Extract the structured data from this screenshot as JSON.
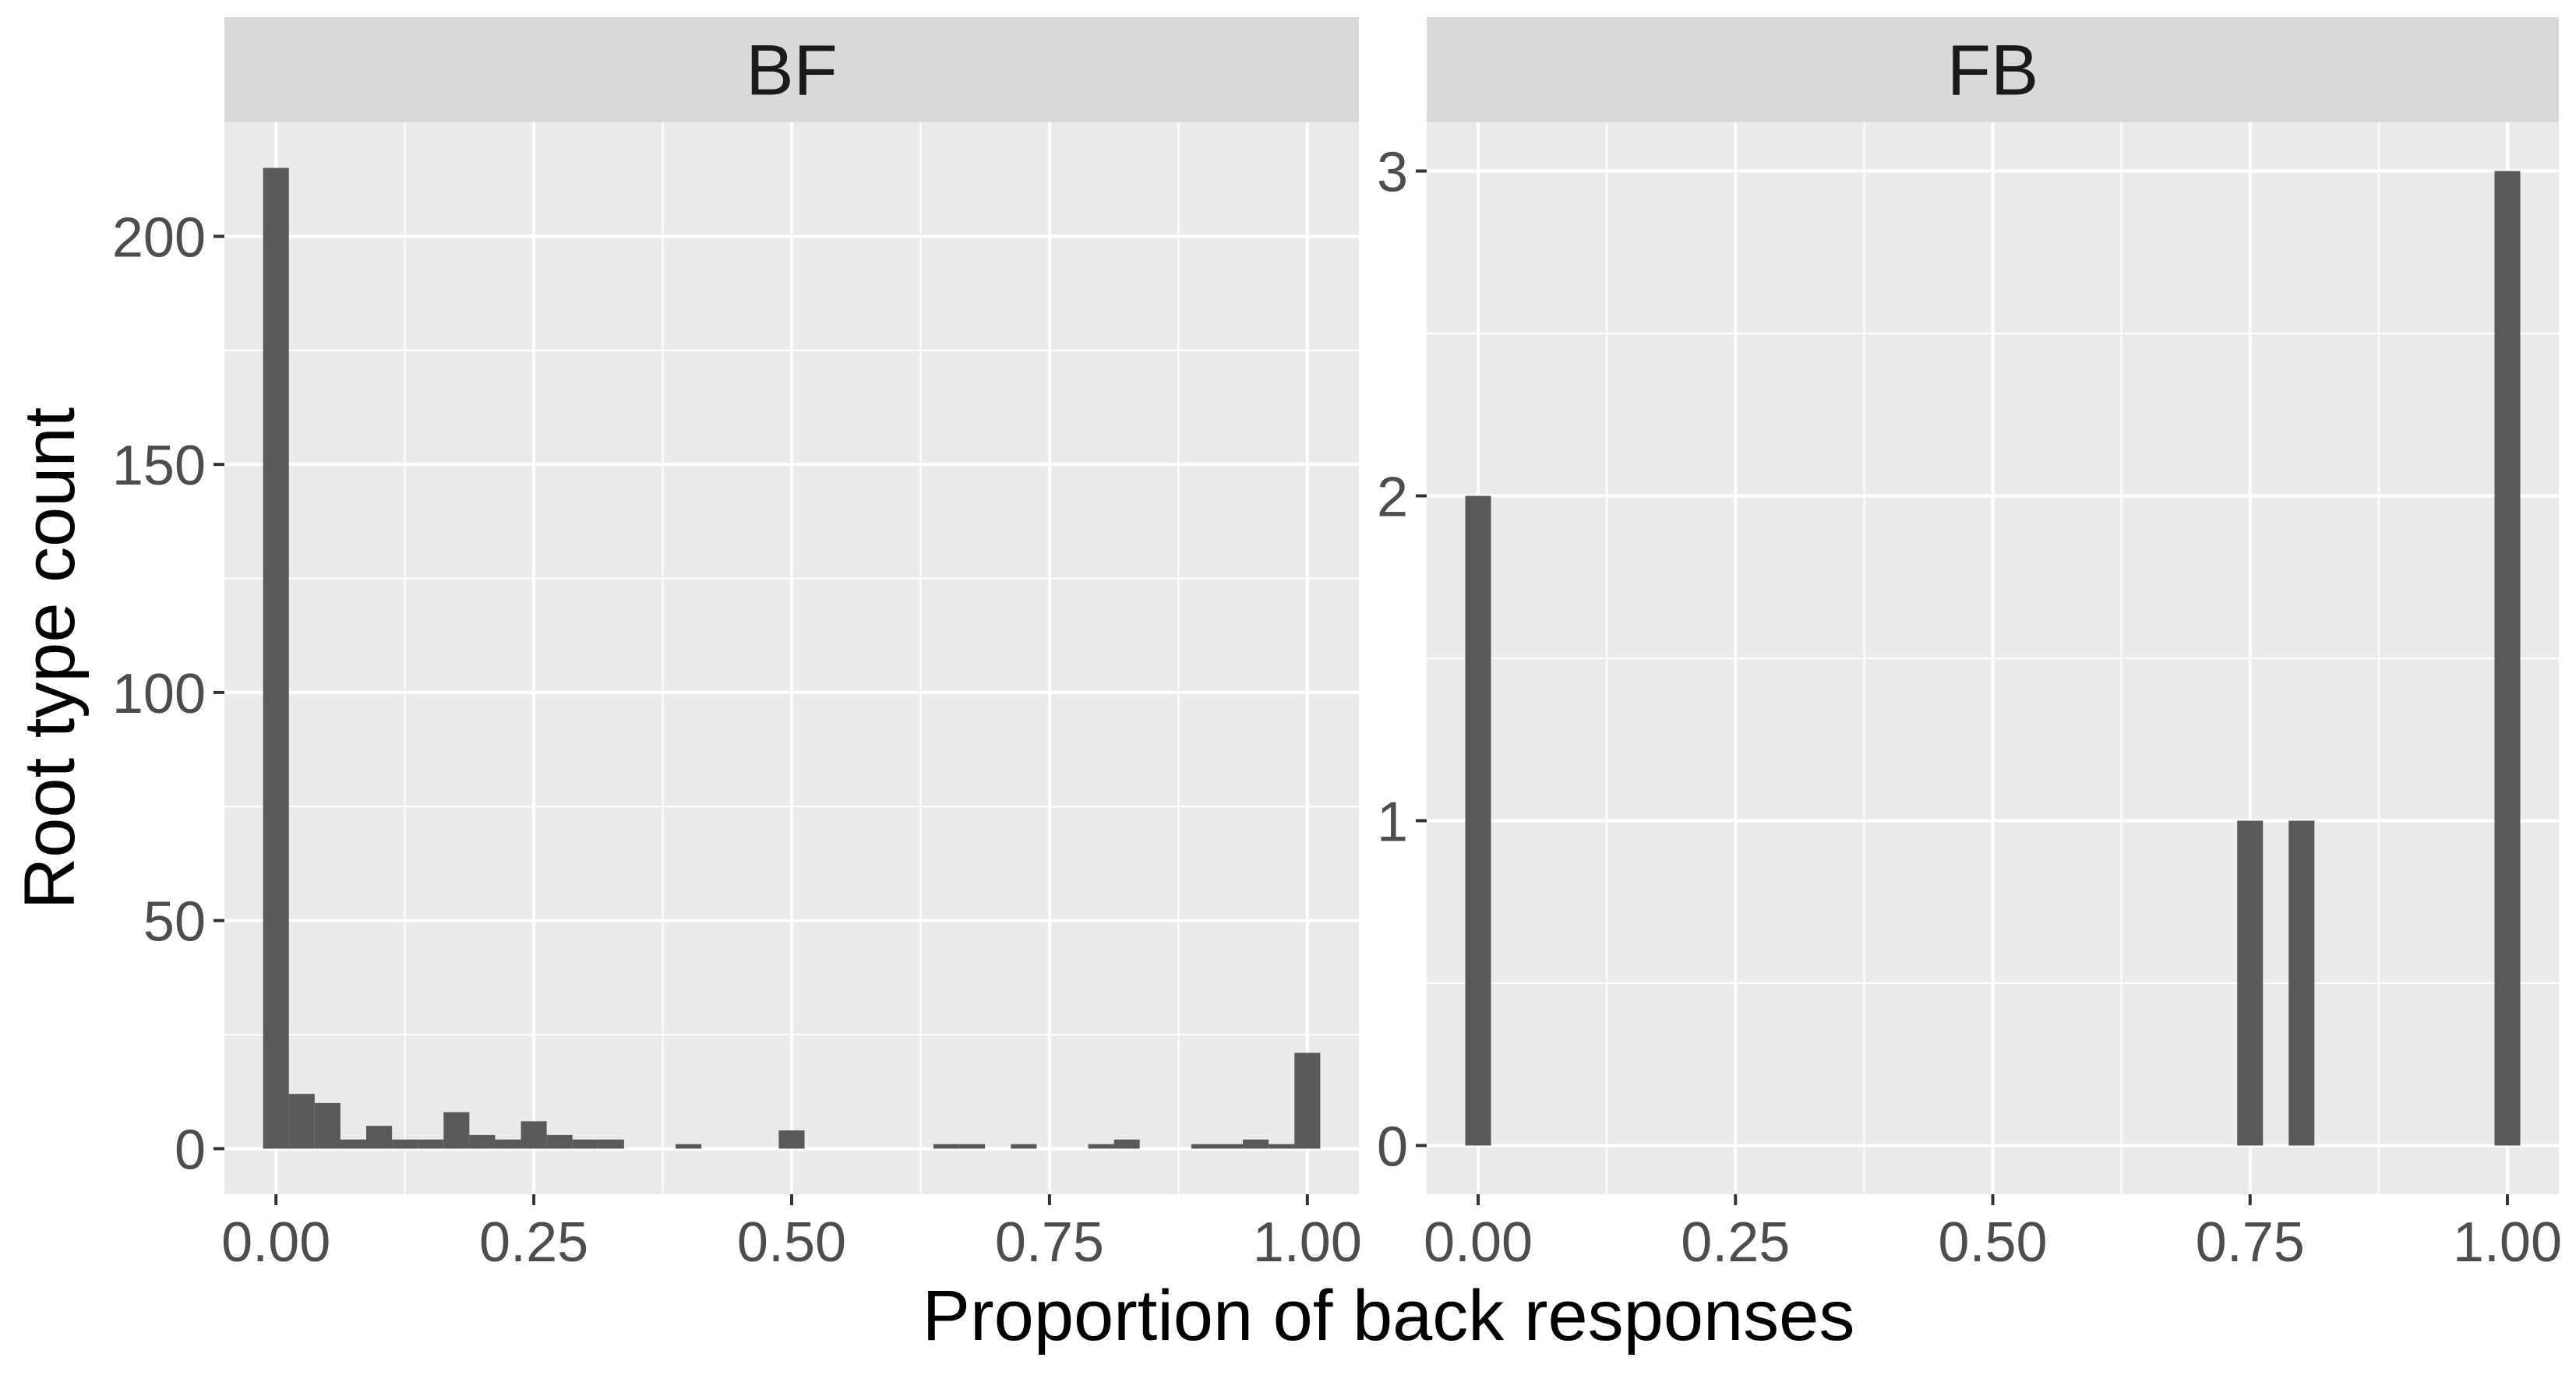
{
  "chart_data": {
    "type": "bar",
    "xlabel": "Proportion of back responses",
    "ylabel": "Root type count",
    "colors": {
      "panel_bg": "#EBEBEB",
      "strip_bg": "#D9D9D9",
      "grid": "#FFFFFF",
      "bar": "#595959",
      "tick_label": "#4D4D4D"
    },
    "panels": [
      {
        "label": "BF",
        "xlim": [
          -0.05,
          1.05
        ],
        "ylim": [
          -10,
          225
        ],
        "x_ticks": [
          0,
          0.25,
          0.5,
          0.75,
          1
        ],
        "x_tick_labels": [
          "0.00",
          "0.25",
          "0.50",
          "0.75",
          "1.00"
        ],
        "y_ticks": [
          0,
          50,
          100,
          150,
          200
        ],
        "y_tick_labels": [
          "0",
          "50",
          "100",
          "150",
          "200"
        ],
        "bin_width": 0.025,
        "bins": [
          {
            "x": 0.0,
            "count": 215
          },
          {
            "x": 0.025,
            "count": 12
          },
          {
            "x": 0.05,
            "count": 10
          },
          {
            "x": 0.075,
            "count": 2
          },
          {
            "x": 0.1,
            "count": 5
          },
          {
            "x": 0.125,
            "count": 2
          },
          {
            "x": 0.15,
            "count": 2
          },
          {
            "x": 0.175,
            "count": 8
          },
          {
            "x": 0.2,
            "count": 3
          },
          {
            "x": 0.225,
            "count": 2
          },
          {
            "x": 0.25,
            "count": 6
          },
          {
            "x": 0.275,
            "count": 3
          },
          {
            "x": 0.3,
            "count": 2
          },
          {
            "x": 0.325,
            "count": 2
          },
          {
            "x": 0.4,
            "count": 1
          },
          {
            "x": 0.5,
            "count": 4
          },
          {
            "x": 0.65,
            "count": 1
          },
          {
            "x": 0.675,
            "count": 1
          },
          {
            "x": 0.725,
            "count": 1
          },
          {
            "x": 0.8,
            "count": 1
          },
          {
            "x": 0.825,
            "count": 2
          },
          {
            "x": 0.9,
            "count": 1
          },
          {
            "x": 0.925,
            "count": 1
          },
          {
            "x": 0.95,
            "count": 2
          },
          {
            "x": 0.975,
            "count": 1
          },
          {
            "x": 1.0,
            "count": 21
          }
        ]
      },
      {
        "label": "FB",
        "xlim": [
          -0.05,
          1.05
        ],
        "ylim": [
          -0.15,
          3.15
        ],
        "x_ticks": [
          0,
          0.25,
          0.5,
          0.75,
          1
        ],
        "x_tick_labels": [
          "0.00",
          "0.25",
          "0.50",
          "0.75",
          "1.00"
        ],
        "y_ticks": [
          0,
          1,
          2,
          3
        ],
        "y_tick_labels": [
          "0",
          "1",
          "2",
          "3"
        ],
        "bin_width": 0.025,
        "bins": [
          {
            "x": 0.0,
            "count": 2
          },
          {
            "x": 0.75,
            "count": 1
          },
          {
            "x": 0.8,
            "count": 1
          },
          {
            "x": 1.0,
            "count": 3
          }
        ]
      }
    ]
  }
}
